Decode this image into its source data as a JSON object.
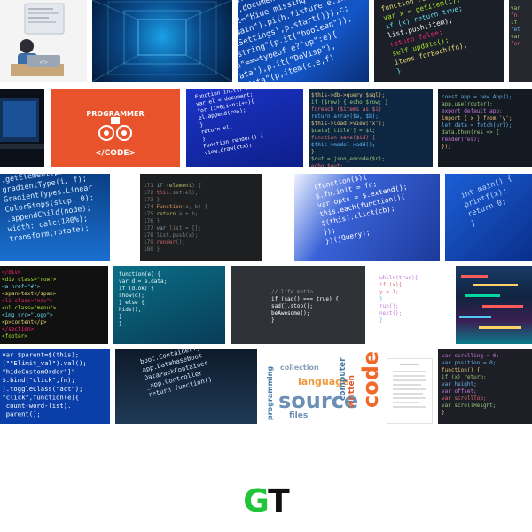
{
  "results_grid": {
    "tiles": [
      {
        "id": "dev-desk-illustration",
        "caption": ""
      },
      {
        "id": "blue-code-tunnel",
        "caption": ""
      },
      {
        "id": "blue-js-closeup",
        "caption": ""
      },
      {
        "id": "dark-editor-1",
        "caption": ""
      },
      {
        "id": "dark-editor-2",
        "caption": ""
      },
      {
        "id": "laptop-dark",
        "caption": ""
      },
      {
        "id": "programmer-orange",
        "caption": ""
      },
      {
        "id": "blue-code-screen",
        "caption": ""
      },
      {
        "id": "colorful-code-dense",
        "caption": ""
      },
      {
        "id": "dark-editor-3",
        "caption": ""
      },
      {
        "id": "blue-code-perspective",
        "caption": ""
      },
      {
        "id": "dark-ide-lines",
        "caption": ""
      },
      {
        "id": "blue-code-bright",
        "caption": ""
      },
      {
        "id": "blue-screen-shutterstock",
        "caption": ""
      },
      {
        "id": "html-colorful",
        "caption": ""
      },
      {
        "id": "teal-code",
        "caption": ""
      },
      {
        "id": "life-motto",
        "caption": ""
      },
      {
        "id": "white-editor",
        "caption": ""
      },
      {
        "id": "colorful-glitch",
        "caption": ""
      },
      {
        "id": "jquery-blue",
        "caption": ""
      },
      {
        "id": "perspective-code",
        "caption": ""
      },
      {
        "id": "word-cloud",
        "caption": ""
      },
      {
        "id": "paper-doc",
        "caption": ""
      },
      {
        "id": "dark-editor-4",
        "caption": ""
      }
    ],
    "programmer_card": {
      "title": "PROGRAMMER",
      "subtitle": "</CODE>"
    },
    "motto_card": {
      "lines": [
        "// life motto",
        "if (sad() === true) {",
        "  sad().stop();",
        "  beAwesome();",
        "}"
      ]
    },
    "word_cloud": {
      "words": [
        "code",
        "source",
        "language",
        "computer",
        "written",
        "files",
        "programming",
        "collection"
      ]
    }
  },
  "logo": {
    "g": "G",
    "t": "T"
  },
  "colors": {
    "logo_green": "#22c53a",
    "logo_dark": "#111111",
    "orange_card": "#e8532c"
  }
}
